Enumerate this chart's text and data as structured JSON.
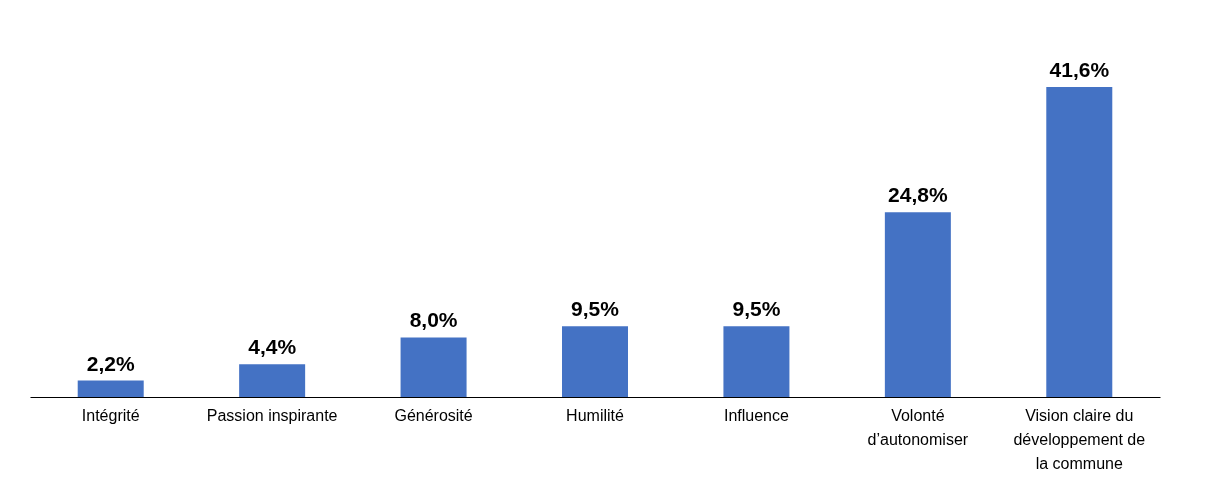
{
  "chart_data": {
    "type": "bar",
    "categories": [
      "Intégrité",
      "Passion inspirante",
      "Générosité",
      "Humilité",
      "Influence",
      "Volonté d’autonomiser",
      "Vision claire du développement de la commune"
    ],
    "values": [
      2.2,
      4.4,
      8.0,
      9.5,
      9.5,
      24.8,
      41.6
    ],
    "value_labels": [
      "2,2%",
      "4,4%",
      "8,0%",
      "9,5%",
      "9,5%",
      "24,8%",
      "41,6%"
    ],
    "color": "#4472c4",
    "grid": false
  }
}
